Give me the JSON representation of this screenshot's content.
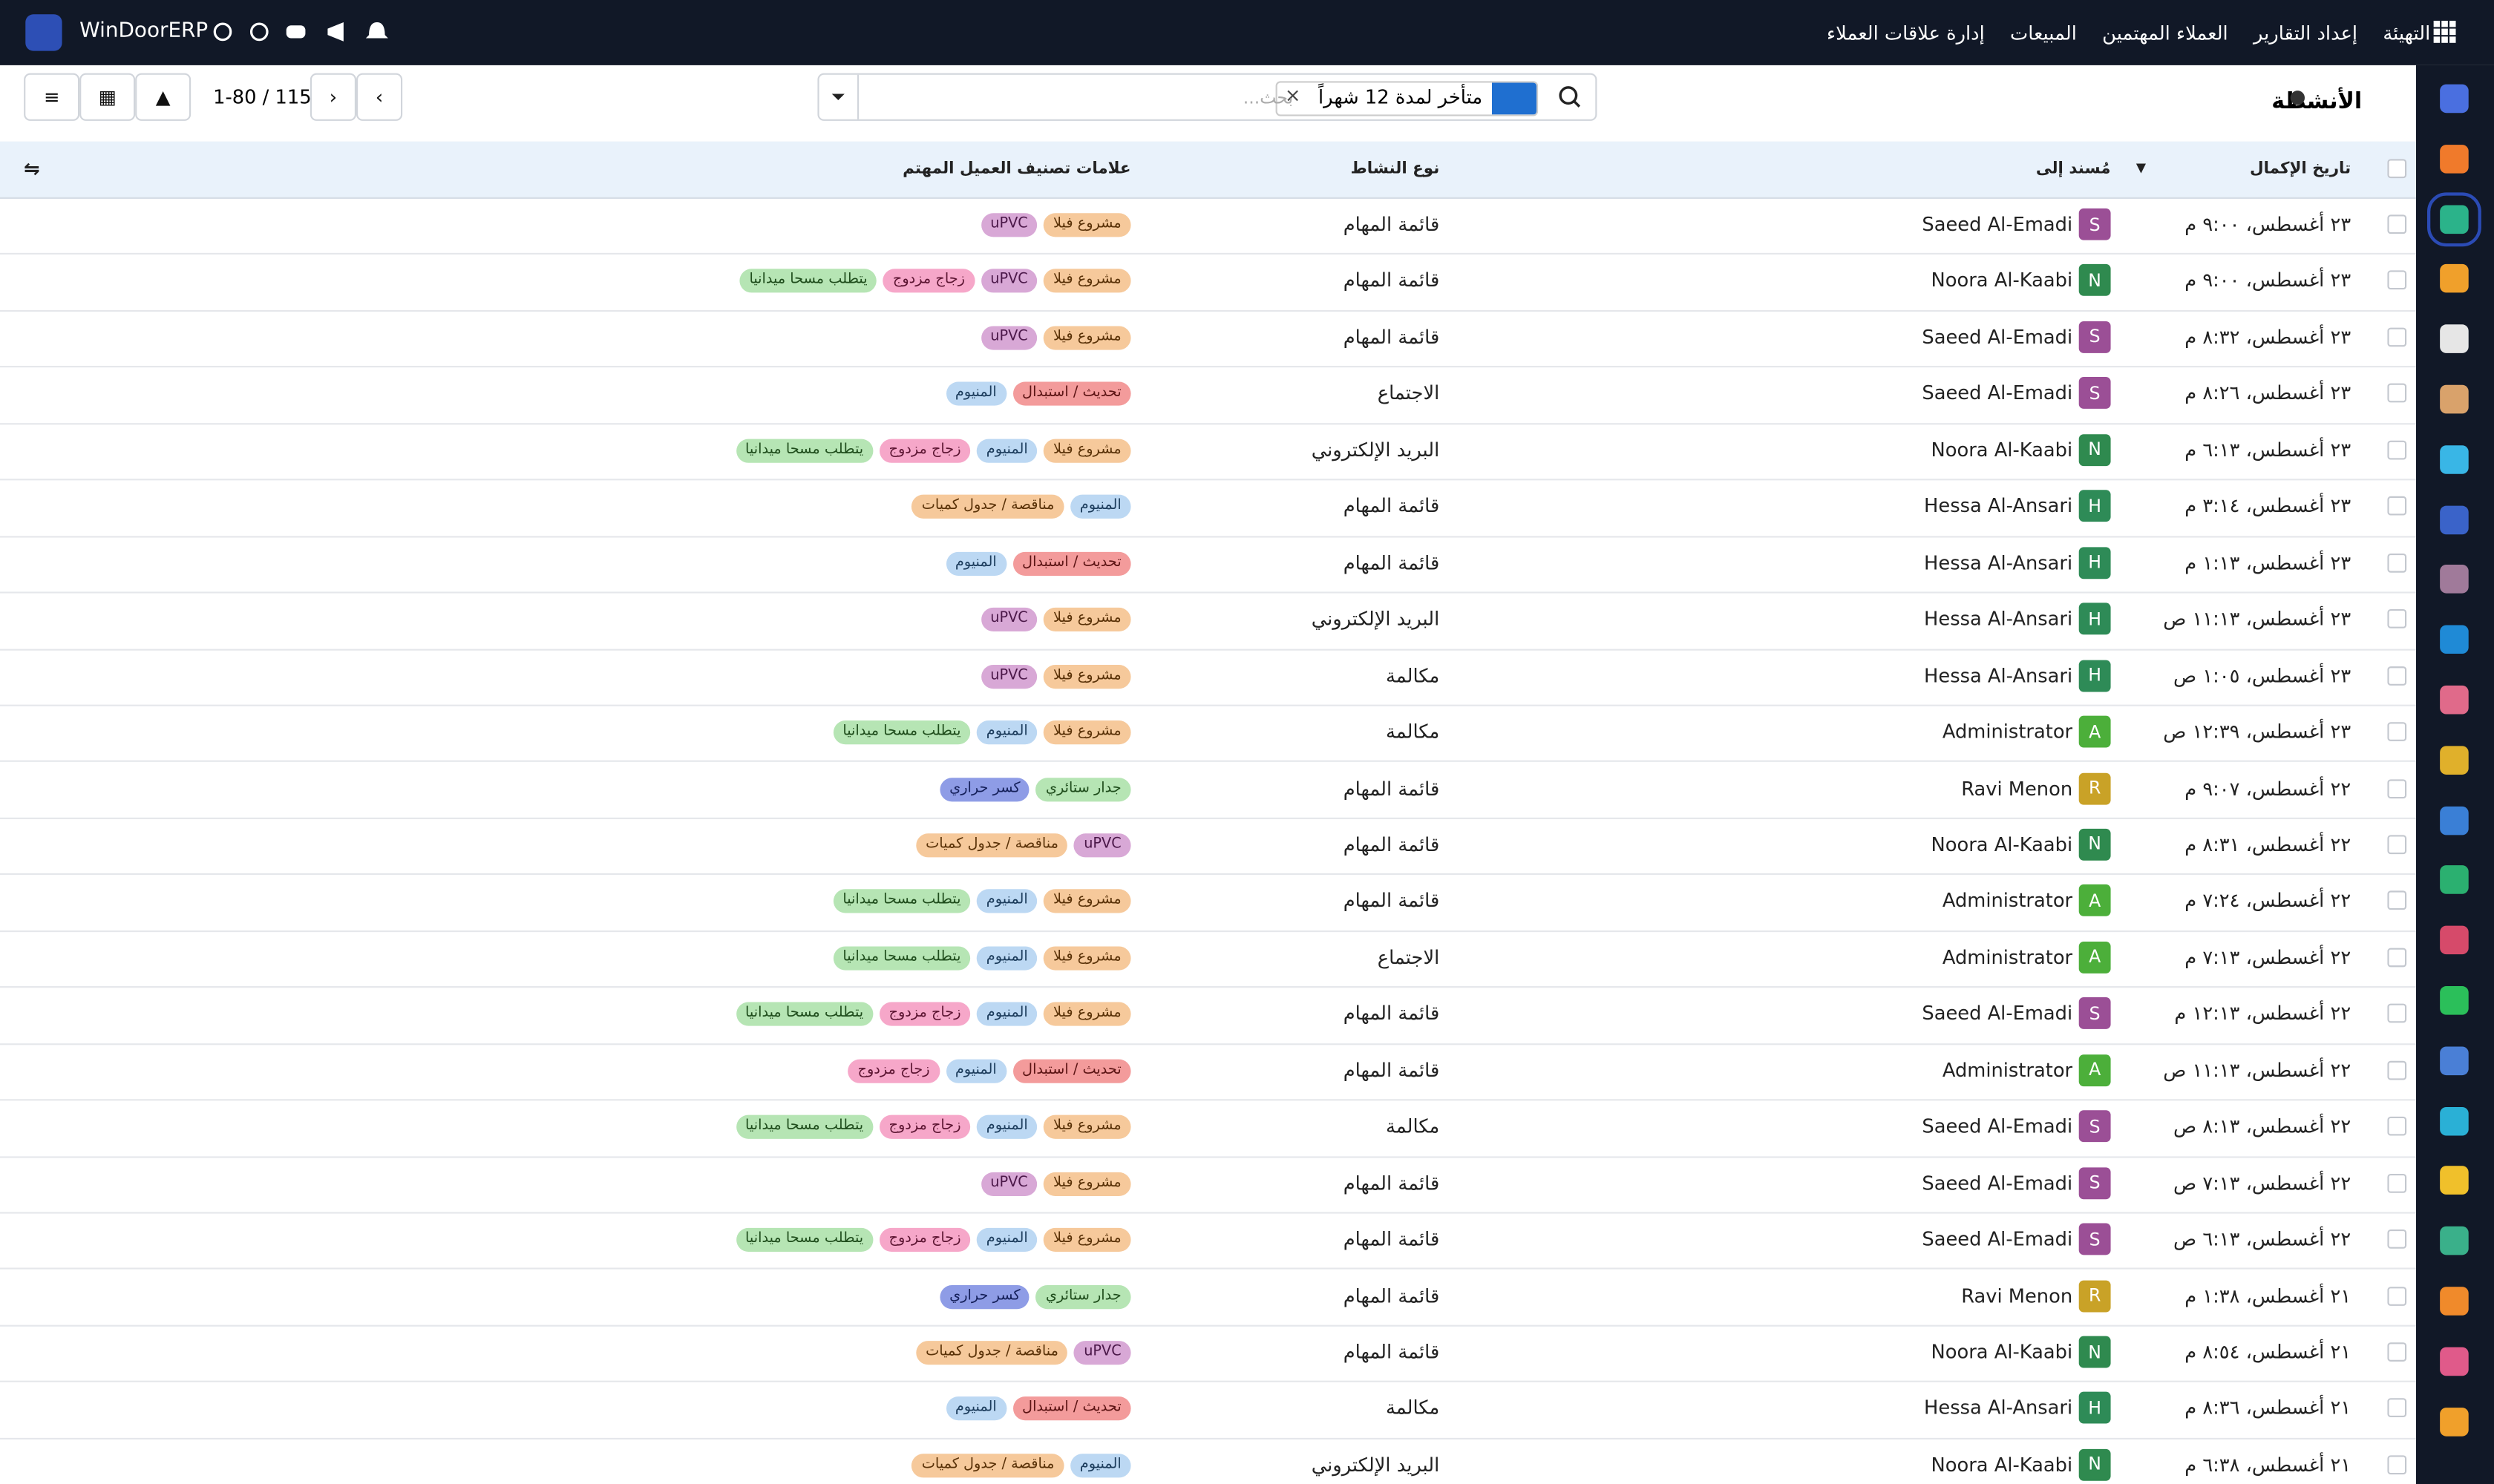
{
  "navbar": {
    "brand": "WinDoorERP",
    "menu": [
      "إدارة علاقات العملاء",
      "المبيعات",
      "العملاء المهتمين",
      "إعداد التقارير",
      "التهيئة"
    ]
  },
  "control_panel": {
    "title": "الأنشطة",
    "facet": "متأخر لمدة 12 شهراً",
    "search_placeholder": "بحث...",
    "pager": "1-80 / 115"
  },
  "table": {
    "columns": [
      "تاريخ الإكمال",
      "مُسند إلى",
      "نوع النشاط",
      "علامات تصنيف العميل المهتم"
    ],
    "rows": [
      {
        "date": "٢٣ أغسطس، ٩:٠٠ م",
        "initial": "S",
        "assignee": "Saeed Al-Emadi",
        "avatar": "#9b4f96",
        "type": "قائمة المهام",
        "tags": [
          {
            "t": "مشروع فيلا",
            "c": "o"
          },
          {
            "t": "uPVC",
            "c": "p"
          }
        ]
      },
      {
        "date": "٢٣ أغسطس، ٩:٠٠ م",
        "initial": "N",
        "assignee": "Noora Al-Kaabi",
        "avatar": "#2f8a4f",
        "type": "قائمة المهام",
        "tags": [
          {
            "t": "مشروع فيلا",
            "c": "o"
          },
          {
            "t": "uPVC",
            "c": "p"
          },
          {
            "t": "زجاج مزدوج",
            "c": "k"
          },
          {
            "t": "يتطلب مسحا ميدانيا",
            "c": "g"
          }
        ]
      },
      {
        "date": "٢٣ أغسطس، ٨:٣٢ م",
        "initial": "S",
        "assignee": "Saeed Al-Emadi",
        "avatar": "#9b4f96",
        "type": "قائمة المهام",
        "tags": [
          {
            "t": "مشروع فيلا",
            "c": "o"
          },
          {
            "t": "uPVC",
            "c": "p"
          }
        ]
      },
      {
        "date": "٢٣ أغسطس، ٨:٢٦ م",
        "initial": "S",
        "assignee": "Saeed Al-Emadi",
        "avatar": "#9b4f96",
        "type": "الاجتماع",
        "tags": [
          {
            "t": "تحديث / استبدال",
            "c": "r"
          },
          {
            "t": "المنيوم",
            "c": "b"
          }
        ]
      },
      {
        "date": "٢٣ أغسطس، ٦:١٣ م",
        "initial": "N",
        "assignee": "Noora Al-Kaabi",
        "avatar": "#2f8a4f",
        "type": "البريد الإلكتروني",
        "tags": [
          {
            "t": "مشروع فيلا",
            "c": "o"
          },
          {
            "t": "المنيوم",
            "c": "b"
          },
          {
            "t": "زجاج مزدوج",
            "c": "k"
          },
          {
            "t": "يتطلب مسحا ميدانيا",
            "c": "g"
          }
        ]
      },
      {
        "date": "٢٣ أغسطس، ٣:١٤ م",
        "initial": "H",
        "assignee": "Hessa Al-Ansari",
        "avatar": "#2e8b57",
        "type": "قائمة المهام",
        "tags": [
          {
            "t": "المنيوم",
            "c": "b"
          },
          {
            "t": "مناقصة / جدول كميات",
            "c": "o"
          }
        ]
      },
      {
        "date": "٢٣ أغسطس، ١:١٣ م",
        "initial": "H",
        "assignee": "Hessa Al-Ansari",
        "avatar": "#2e8b57",
        "type": "قائمة المهام",
        "tags": [
          {
            "t": "تحديث / استبدال",
            "c": "r"
          },
          {
            "t": "المنيوم",
            "c": "b"
          }
        ]
      },
      {
        "date": "٢٣ أغسطس، ١١:١٣ ص",
        "initial": "H",
        "assignee": "Hessa Al-Ansari",
        "avatar": "#2e8b57",
        "type": "البريد الإلكتروني",
        "tags": [
          {
            "t": "مشروع فيلا",
            "c": "o"
          },
          {
            "t": "uPVC",
            "c": "p"
          }
        ]
      },
      {
        "date": "٢٣ أغسطس، ١:٠٥ ص",
        "initial": "H",
        "assignee": "Hessa Al-Ansari",
        "avatar": "#2e8b57",
        "type": "مكالمة",
        "tags": [
          {
            "t": "مشروع فيلا",
            "c": "o"
          },
          {
            "t": "uPVC",
            "c": "p"
          }
        ]
      },
      {
        "date": "٢٣ أغسطس، ١٢:٣٩ ص",
        "initial": "A",
        "assignee": "Administrator",
        "avatar": "#4caf3a",
        "type": "مكالمة",
        "tags": [
          {
            "t": "مشروع فيلا",
            "c": "o"
          },
          {
            "t": "المنيوم",
            "c": "b"
          },
          {
            "t": "يتطلب مسحا ميدانيا",
            "c": "g"
          }
        ]
      },
      {
        "date": "٢٢ أغسطس، ٩:٠٧ م",
        "initial": "R",
        "assignee": "Ravi Menon",
        "avatar": "#c9a227",
        "type": "قائمة المهام",
        "tags": [
          {
            "t": "جدار ستائري",
            "c": "g"
          },
          {
            "t": "كسر حراري",
            "c": "v"
          }
        ]
      },
      {
        "date": "٢٢ أغسطس، ٨:٣١ م",
        "initial": "N",
        "assignee": "Noora Al-Kaabi",
        "avatar": "#2f8a4f",
        "type": "قائمة المهام",
        "tags": [
          {
            "t": "uPVC",
            "c": "p"
          },
          {
            "t": "مناقصة / جدول كميات",
            "c": "o"
          }
        ]
      },
      {
        "date": "٢٢ أغسطس، ٧:٢٤ م",
        "initial": "A",
        "assignee": "Administrator",
        "avatar": "#4caf3a",
        "type": "قائمة المهام",
        "tags": [
          {
            "t": "مشروع فيلا",
            "c": "o"
          },
          {
            "t": "المنيوم",
            "c": "b"
          },
          {
            "t": "يتطلب مسحا ميدانيا",
            "c": "g"
          }
        ]
      },
      {
        "date": "٢٢ أغسطس، ٧:١٣ م",
        "initial": "A",
        "assignee": "Administrator",
        "avatar": "#4caf3a",
        "type": "الاجتماع",
        "tags": [
          {
            "t": "مشروع فيلا",
            "c": "o"
          },
          {
            "t": "المنيوم",
            "c": "b"
          },
          {
            "t": "يتطلب مسحا ميدانيا",
            "c": "g"
          }
        ]
      },
      {
        "date": "٢٢ أغسطس، ١٢:١٣ م",
        "initial": "S",
        "assignee": "Saeed Al-Emadi",
        "avatar": "#9b4f96",
        "type": "قائمة المهام",
        "tags": [
          {
            "t": "مشروع فيلا",
            "c": "o"
          },
          {
            "t": "المنيوم",
            "c": "b"
          },
          {
            "t": "زجاج مزدوج",
            "c": "k"
          },
          {
            "t": "يتطلب مسحا ميدانيا",
            "c": "g"
          }
        ]
      },
      {
        "date": "٢٢ أغسطس، ١١:١٣ ص",
        "initial": "A",
        "assignee": "Administrator",
        "avatar": "#4caf3a",
        "type": "قائمة المهام",
        "tags": [
          {
            "t": "تحديث / استبدال",
            "c": "r"
          },
          {
            "t": "المنيوم",
            "c": "b"
          },
          {
            "t": "زجاج مزدوج",
            "c": "k"
          }
        ]
      },
      {
        "date": "٢٢ أغسطس، ٨:١٣ ص",
        "initial": "S",
        "assignee": "Saeed Al-Emadi",
        "avatar": "#9b4f96",
        "type": "مكالمة",
        "tags": [
          {
            "t": "مشروع فيلا",
            "c": "o"
          },
          {
            "t": "المنيوم",
            "c": "b"
          },
          {
            "t": "زجاج مزدوج",
            "c": "k"
          },
          {
            "t": "يتطلب مسحا ميدانيا",
            "c": "g"
          }
        ]
      },
      {
        "date": "٢٢ أغسطس، ٧:١٣ ص",
        "initial": "S",
        "assignee": "Saeed Al-Emadi",
        "avatar": "#9b4f96",
        "type": "قائمة المهام",
        "tags": [
          {
            "t": "مشروع فيلا",
            "c": "o"
          },
          {
            "t": "uPVC",
            "c": "p"
          }
        ]
      },
      {
        "date": "٢٢ أغسطس، ٦:١٣ ص",
        "initial": "S",
        "assignee": "Saeed Al-Emadi",
        "avatar": "#9b4f96",
        "type": "قائمة المهام",
        "tags": [
          {
            "t": "مشروع فيلا",
            "c": "o"
          },
          {
            "t": "المنيوم",
            "c": "b"
          },
          {
            "t": "زجاج مزدوج",
            "c": "k"
          },
          {
            "t": "يتطلب مسحا ميدانيا",
            "c": "g"
          }
        ]
      },
      {
        "date": "٢١ أغسطس، ١:٣٨ م",
        "initial": "R",
        "assignee": "Ravi Menon",
        "avatar": "#c9a227",
        "type": "قائمة المهام",
        "tags": [
          {
            "t": "جدار ستائري",
            "c": "g"
          },
          {
            "t": "كسر حراري",
            "c": "v"
          }
        ]
      },
      {
        "date": "٢١ أغسطس، ٨:٥٤ م",
        "initial": "N",
        "assignee": "Noora Al-Kaabi",
        "avatar": "#2f8a4f",
        "type": "قائمة المهام",
        "tags": [
          {
            "t": "uPVC",
            "c": "p"
          },
          {
            "t": "مناقصة / جدول كميات",
            "c": "o"
          }
        ]
      },
      {
        "date": "٢١ أغسطس، ٨:٣٦ م",
        "initial": "H",
        "assignee": "Hessa Al-Ansari",
        "avatar": "#2e8b57",
        "type": "مكالمة",
        "tags": [
          {
            "t": "تحديث / استبدال",
            "c": "r"
          },
          {
            "t": "المنيوم",
            "c": "b"
          }
        ]
      },
      {
        "date": "٢١ أغسطس، ٦:٣٨ م",
        "initial": "N",
        "assignee": "Noora Al-Kaabi",
        "avatar": "#2f8a4f",
        "type": "البريد الإلكتروني",
        "tags": [
          {
            "t": "المنيوم",
            "c": "b"
          },
          {
            "t": "مناقصة / جدول كميات",
            "c": "o"
          }
        ]
      }
    ]
  }
}
